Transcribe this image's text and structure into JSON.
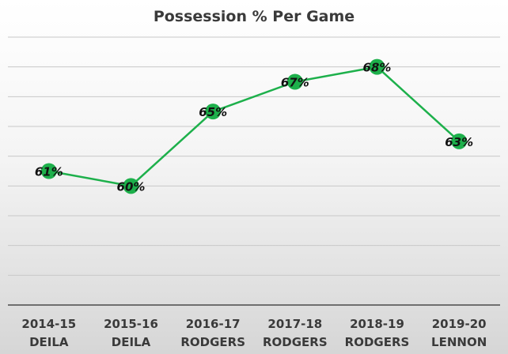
{
  "chart_data": {
    "type": "line",
    "title": "Possession % Per Game",
    "xlabel": "",
    "ylabel": "",
    "categories": [
      [
        "2014-15",
        "DEILA"
      ],
      [
        "2015-16",
        "DEILA"
      ],
      [
        "2016-17",
        "RODGERS"
      ],
      [
        "2017-18",
        "RODGERS"
      ],
      [
        "2018-19",
        "RODGERS"
      ],
      [
        "2019-20",
        "LENNON"
      ]
    ],
    "series": [
      {
        "values": [
          61,
          60,
          65,
          67,
          68,
          63
        ],
        "data_labels": [
          "61%",
          "60%",
          "65%",
          "67%",
          "68%",
          "63%"
        ],
        "color": "#1db04b"
      }
    ],
    "ylim": [
      52,
      70
    ],
    "grid": true,
    "legend": "none"
  }
}
